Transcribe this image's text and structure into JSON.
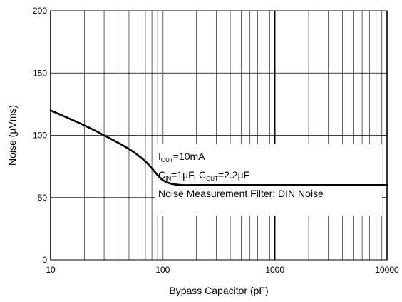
{
  "chart_data": {
    "type": "line",
    "title": "",
    "xlabel": "Bypass Capacitor (pF)",
    "ylabel": "Noise (µVms)",
    "x_scale": "log",
    "xlim": [
      10,
      10000
    ],
    "ylim": [
      0,
      200
    ],
    "x_ticks": [
      "10",
      "100",
      "1000",
      "10000"
    ],
    "y_ticks": [
      "0",
      "50",
      "100",
      "150",
      "200"
    ],
    "grid": true,
    "legend": "none",
    "series": [
      {
        "name": "",
        "color": "#000000",
        "points": [
          {
            "x": 10,
            "y": 120
          },
          {
            "x": 20,
            "y": 108
          },
          {
            "x": 30,
            "y": 100
          },
          {
            "x": 50,
            "y": 89
          },
          {
            "x": 70,
            "y": 79
          },
          {
            "x": 90,
            "y": 68
          },
          {
            "x": 100,
            "y": 64
          },
          {
            "x": 120,
            "y": 61
          },
          {
            "x": 150,
            "y": 60
          },
          {
            "x": 200,
            "y": 60
          },
          {
            "x": 500,
            "y": 60
          },
          {
            "x": 1000,
            "y": 60
          },
          {
            "x": 5000,
            "y": 60
          },
          {
            "x": 10000,
            "y": 60
          }
        ]
      }
    ],
    "annotations": [
      {
        "main": "I",
        "sub": "OUT",
        "rest": "=10mA"
      },
      {
        "c1": "C",
        "c1_sub": "IN",
        "c1_rest": "=1µF, ",
        "c2": "C",
        "c2_sub": "OUT",
        "c2_rest": "=2.2µF"
      },
      {
        "text": "Noise Measurement Filter: DIN Noise"
      }
    ]
  }
}
